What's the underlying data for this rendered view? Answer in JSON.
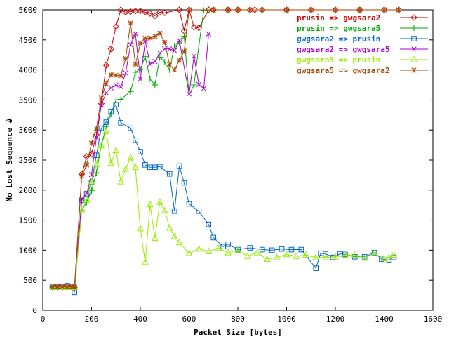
{
  "chart_data": {
    "type": "line",
    "title": "",
    "xlabel": "Packet Size [bytes]",
    "ylabel": "No Lost Sequence #",
    "xlim": [
      0,
      1600
    ],
    "ylim": [
      0,
      5000
    ],
    "xticks": [
      0,
      200,
      400,
      600,
      800,
      1000,
      1200,
      1400,
      1600
    ],
    "yticks": [
      0,
      500,
      1000,
      1500,
      2000,
      2500,
      3000,
      3500,
      4000,
      4500,
      5000
    ],
    "grid": false,
    "legend_position": "top-right",
    "series": [
      {
        "name": "prusin => gwgsara2",
        "color": "#cc0000",
        "marker": "diamond",
        "points": [
          [
            40,
            385
          ],
          [
            60,
            385
          ],
          [
            80,
            385
          ],
          [
            100,
            390
          ],
          [
            120,
            380
          ],
          [
            130,
            380
          ],
          [
            160,
            2270
          ],
          [
            180,
            2560
          ],
          [
            200,
            2600
          ],
          [
            220,
            2920
          ],
          [
            240,
            3440
          ],
          [
            260,
            4080
          ],
          [
            280,
            4350
          ],
          [
            300,
            4720
          ],
          [
            320,
            5000
          ],
          [
            340,
            4960
          ],
          [
            360,
            4970
          ],
          [
            380,
            4980
          ],
          [
            400,
            4980
          ],
          [
            420,
            4960
          ],
          [
            440,
            4940
          ],
          [
            460,
            4900
          ],
          [
            480,
            4960
          ],
          [
            500,
            4950
          ],
          [
            560,
            5000
          ],
          [
            580,
            4650
          ],
          [
            600,
            5000
          ],
          [
            620,
            4710
          ],
          [
            640,
            4700
          ],
          [
            680,
            5000
          ],
          [
            700,
            5000
          ],
          [
            760,
            5000
          ],
          [
            800,
            5000
          ],
          [
            850,
            5000
          ],
          [
            870,
            5000
          ],
          [
            900,
            5000
          ],
          [
            1000,
            5000
          ],
          [
            1100,
            5000
          ],
          [
            1200,
            5000
          ],
          [
            1300,
            5000
          ],
          [
            1400,
            5000
          ],
          [
            1460,
            5000
          ]
        ]
      },
      {
        "name": "prusin => gwgsara5",
        "color": "#00aa00",
        "marker": "plus",
        "points": [
          [
            40,
            385
          ],
          [
            60,
            380
          ],
          [
            80,
            380
          ],
          [
            100,
            380
          ],
          [
            120,
            380
          ],
          [
            130,
            380
          ],
          [
            160,
            1660
          ],
          [
            180,
            1800
          ],
          [
            200,
            1990
          ],
          [
            220,
            2290
          ],
          [
            240,
            2750
          ],
          [
            260,
            3060
          ],
          [
            280,
            3270
          ],
          [
            300,
            3500
          ],
          [
            320,
            3510
          ],
          [
            360,
            3640
          ],
          [
            380,
            3960
          ],
          [
            400,
            4010
          ],
          [
            420,
            4220
          ],
          [
            440,
            3850
          ],
          [
            460,
            3750
          ],
          [
            480,
            4210
          ],
          [
            500,
            4130
          ],
          [
            520,
            4000
          ],
          [
            540,
            4400
          ],
          [
            560,
            4440
          ],
          [
            580,
            4560
          ],
          [
            600,
            3580
          ],
          [
            620,
            3750
          ],
          [
            640,
            4400
          ],
          [
            660,
            4990
          ],
          [
            700,
            5000
          ],
          [
            760,
            5000
          ],
          [
            800,
            5000
          ],
          [
            850,
            5000
          ],
          [
            900,
            5000
          ],
          [
            1000,
            5000
          ],
          [
            1100,
            5000
          ],
          [
            1200,
            5000
          ],
          [
            1300,
            5000
          ],
          [
            1400,
            5000
          ],
          [
            1460,
            5000
          ]
        ]
      },
      {
        "name": "gwgsara2 => prusin",
        "color": "#0066cc",
        "marker": "square",
        "points": [
          [
            40,
            385
          ],
          [
            60,
            385
          ],
          [
            80,
            385
          ],
          [
            100,
            410
          ],
          [
            120,
            395
          ],
          [
            130,
            300
          ],
          [
            160,
            1830
          ],
          [
            180,
            1940
          ],
          [
            200,
            2130
          ],
          [
            220,
            2580
          ],
          [
            240,
            3030
          ],
          [
            260,
            3130
          ],
          [
            280,
            3310
          ],
          [
            300,
            3420
          ],
          [
            320,
            3120
          ],
          [
            360,
            3030
          ],
          [
            380,
            2830
          ],
          [
            400,
            2640
          ],
          [
            420,
            2420
          ],
          [
            440,
            2380
          ],
          [
            460,
            2380
          ],
          [
            480,
            2390
          ],
          [
            520,
            2270
          ],
          [
            540,
            1650
          ],
          [
            560,
            2400
          ],
          [
            580,
            2120
          ],
          [
            600,
            1770
          ],
          [
            640,
            1650
          ],
          [
            680,
            1430
          ],
          [
            700,
            1210
          ],
          [
            740,
            1060
          ],
          [
            760,
            1100
          ],
          [
            800,
            1010
          ],
          [
            850,
            1040
          ],
          [
            900,
            1010
          ],
          [
            940,
            1000
          ],
          [
            980,
            1020
          ],
          [
            1020,
            1010
          ],
          [
            1060,
            1010
          ],
          [
            1120,
            700
          ],
          [
            1140,
            950
          ],
          [
            1160,
            940
          ],
          [
            1190,
            880
          ],
          [
            1220,
            940
          ],
          [
            1240,
            930
          ],
          [
            1280,
            890
          ],
          [
            1320,
            890
          ],
          [
            1360,
            960
          ],
          [
            1390,
            850
          ],
          [
            1420,
            840
          ],
          [
            1440,
            880
          ]
        ]
      },
      {
        "name": "gwgsara2 => gwgsara5",
        "color": "#aa00cc",
        "marker": "x",
        "points": [
          [
            40,
            385
          ],
          [
            60,
            385
          ],
          [
            80,
            400
          ],
          [
            100,
            395
          ],
          [
            120,
            385
          ],
          [
            130,
            385
          ],
          [
            160,
            1850
          ],
          [
            180,
            1940
          ],
          [
            200,
            2260
          ],
          [
            220,
            2870
          ],
          [
            240,
            3420
          ],
          [
            260,
            3620
          ],
          [
            280,
            3700
          ],
          [
            300,
            3750
          ],
          [
            320,
            3720
          ],
          [
            340,
            3950
          ],
          [
            360,
            4420
          ],
          [
            380,
            4600
          ],
          [
            400,
            3850
          ],
          [
            420,
            4480
          ],
          [
            440,
            4100
          ],
          [
            460,
            4140
          ],
          [
            480,
            4280
          ],
          [
            500,
            4350
          ],
          [
            520,
            4350
          ],
          [
            540,
            4320
          ],
          [
            560,
            4490
          ],
          [
            600,
            3600
          ],
          [
            620,
            4230
          ],
          [
            640,
            3760
          ],
          [
            660,
            3690
          ],
          [
            680,
            4600
          ]
        ]
      },
      {
        "name": "gwgsara5 => prusin",
        "color": "#99ee00",
        "marker": "triangle",
        "points": [
          [
            40,
            385
          ],
          [
            60,
            385
          ],
          [
            80,
            385
          ],
          [
            100,
            385
          ],
          [
            120,
            385
          ],
          [
            130,
            380
          ],
          [
            160,
            1660
          ],
          [
            180,
            1840
          ],
          [
            200,
            2140
          ],
          [
            220,
            2430
          ],
          [
            240,
            2740
          ],
          [
            260,
            2980
          ],
          [
            280,
            2450
          ],
          [
            300,
            2660
          ],
          [
            320,
            2140
          ],
          [
            340,
            2350
          ],
          [
            360,
            2540
          ],
          [
            380,
            2380
          ],
          [
            400,
            1360
          ],
          [
            420,
            800
          ],
          [
            440,
            1760
          ],
          [
            460,
            1200
          ],
          [
            480,
            1800
          ],
          [
            500,
            1660
          ],
          [
            520,
            1370
          ],
          [
            540,
            1230
          ],
          [
            560,
            1130
          ],
          [
            600,
            950
          ],
          [
            640,
            1020
          ],
          [
            680,
            980
          ],
          [
            720,
            1040
          ],
          [
            760,
            960
          ],
          [
            800,
            1000
          ],
          [
            840,
            900
          ],
          [
            880,
            960
          ],
          [
            920,
            850
          ],
          [
            960,
            880
          ],
          [
            1000,
            930
          ],
          [
            1040,
            900
          ],
          [
            1080,
            920
          ],
          [
            1120,
            880
          ],
          [
            1160,
            880
          ],
          [
            1200,
            890
          ],
          [
            1240,
            920
          ],
          [
            1280,
            920
          ],
          [
            1320,
            870
          ],
          [
            1360,
            950
          ],
          [
            1400,
            860
          ],
          [
            1420,
            880
          ],
          [
            1440,
            920
          ]
        ]
      },
      {
        "name": "gwgsara5 => gwgsara2",
        "color": "#aa4400",
        "marker": "star",
        "points": [
          [
            40,
            390
          ],
          [
            60,
            400
          ],
          [
            80,
            390
          ],
          [
            100,
            390
          ],
          [
            120,
            395
          ],
          [
            130,
            395
          ],
          [
            160,
            2240
          ],
          [
            180,
            2420
          ],
          [
            200,
            2780
          ],
          [
            220,
            3030
          ],
          [
            240,
            3530
          ],
          [
            260,
            3770
          ],
          [
            280,
            3920
          ],
          [
            300,
            3910
          ],
          [
            320,
            3900
          ],
          [
            340,
            4190
          ],
          [
            360,
            4780
          ],
          [
            380,
            4090
          ],
          [
            400,
            4440
          ],
          [
            420,
            4530
          ],
          [
            440,
            4530
          ],
          [
            460,
            4560
          ],
          [
            480,
            4610
          ],
          [
            500,
            4460
          ],
          [
            520,
            4080
          ],
          [
            540,
            4000
          ],
          [
            560,
            4160
          ],
          [
            580,
            4310
          ],
          [
            600,
            5000
          ],
          [
            700,
            5000
          ],
          [
            760,
            5000
          ],
          [
            800,
            5000
          ],
          [
            850,
            5000
          ],
          [
            900,
            5000
          ],
          [
            1000,
            5000
          ],
          [
            1100,
            5000
          ],
          [
            1200,
            5000
          ],
          [
            1300,
            5000
          ],
          [
            1400,
            5000
          ],
          [
            1460,
            5000
          ]
        ]
      }
    ]
  }
}
